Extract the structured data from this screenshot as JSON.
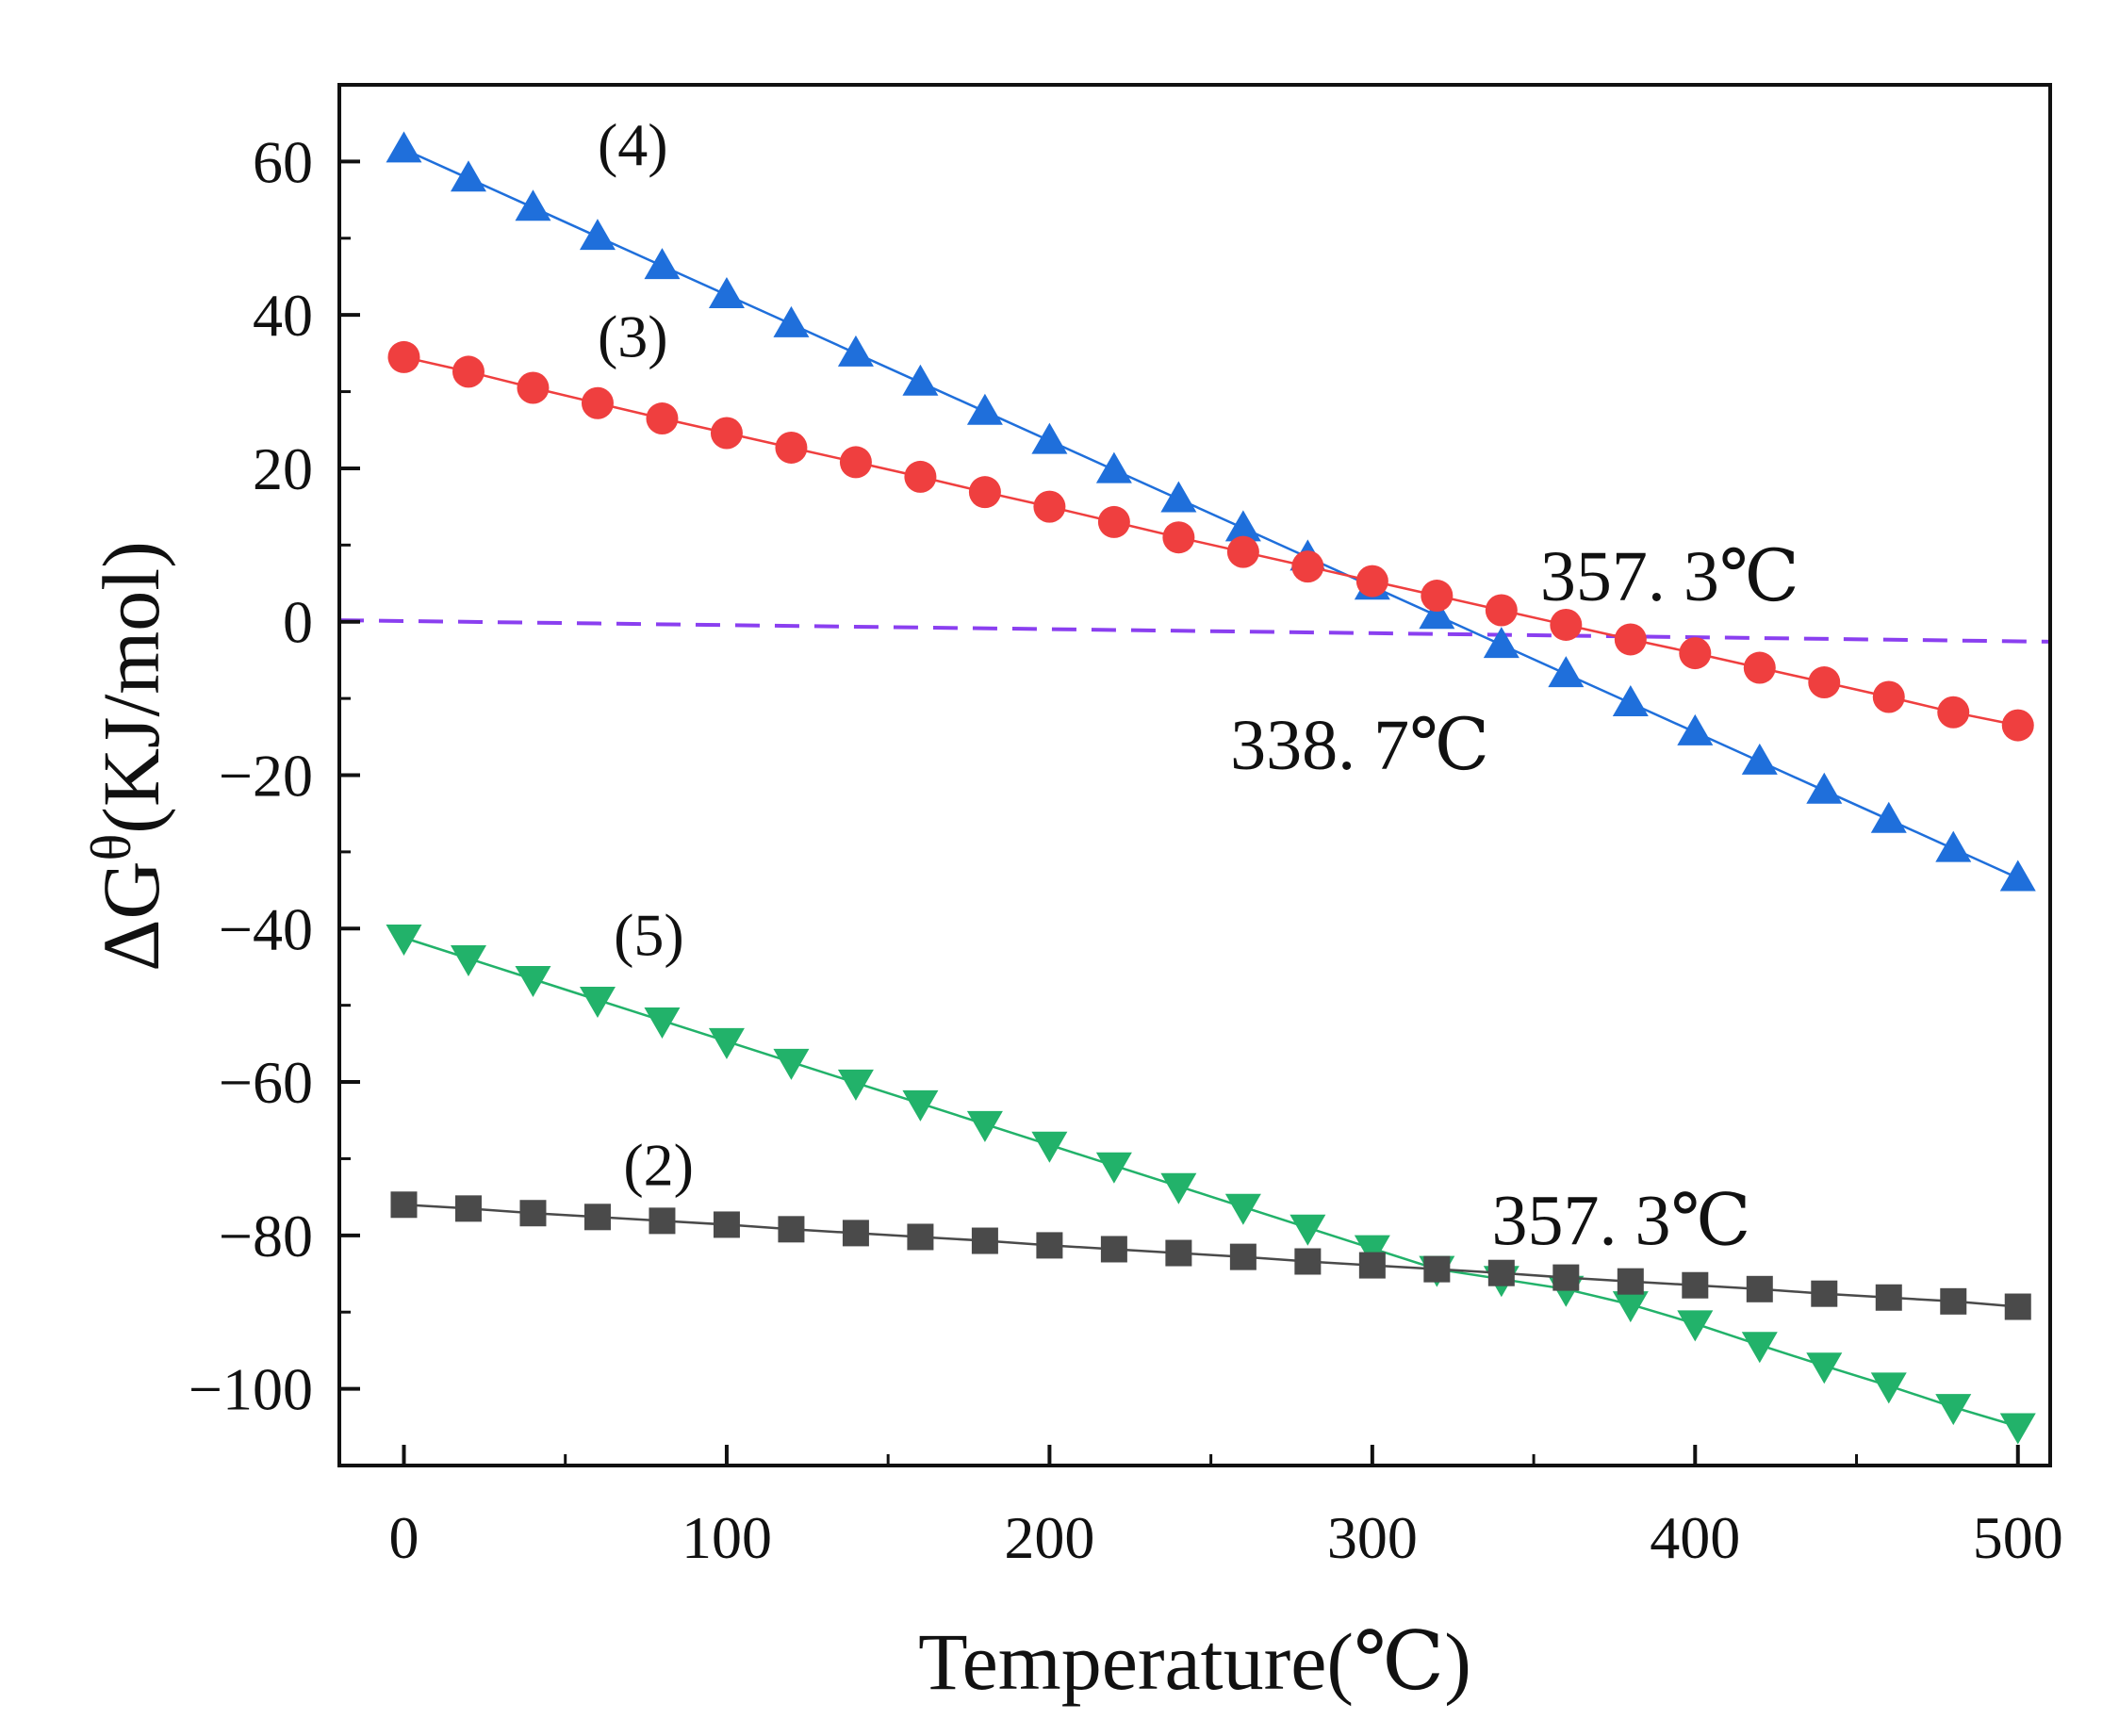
{
  "chart_data": {
    "type": "line",
    "xlabel": "Temperature(℃)",
    "ylabel_main": "ΔG",
    "ylabel_sup": "θ",
    "ylabel_unit": "(KJ/mol)",
    "xlim": [
      -20,
      510
    ],
    "ylim": [
      -110,
      70
    ],
    "xticks": [
      0,
      100,
      200,
      300,
      400,
      500
    ],
    "xtick_labels": [
      "0",
      "100",
      "200",
      "300",
      "400",
      "500"
    ],
    "yticks": [
      60,
      40,
      20,
      0,
      -20,
      -40,
      -60,
      -80,
      -100
    ],
    "ytick_labels": [
      "60",
      "40",
      "20",
      "0",
      "−20",
      "−40",
      "−60",
      "−80",
      "−100"
    ],
    "x": [
      0,
      20,
      40,
      60,
      80,
      100,
      120,
      140,
      160,
      180,
      200,
      220,
      240,
      260,
      280,
      300,
      320,
      340,
      360,
      380,
      400,
      420,
      440,
      460,
      480,
      500
    ],
    "series": [
      {
        "label": "(4)",
        "marker": "triangle-up",
        "color": "#1f6fdb",
        "label_pos": [
          60,
          62
        ],
        "values": [
          61.6,
          57.8,
          54.0,
          50.2,
          46.4,
          42.6,
          38.8,
          35.0,
          31.2,
          27.4,
          23.6,
          19.8,
          16.0,
          12.2,
          8.4,
          4.6,
          0.8,
          -3.0,
          -6.8,
          -10.6,
          -14.4,
          -18.2,
          -22.0,
          -25.8,
          -29.6,
          -33.4
        ]
      },
      {
        "label": "(3)",
        "marker": "circle",
        "color": "#ef3f3f",
        "label_pos": [
          60,
          37
        ],
        "values": [
          34.5,
          32.6,
          30.5,
          28.5,
          26.5,
          24.6,
          22.7,
          20.8,
          18.9,
          16.9,
          15.0,
          13.0,
          11.0,
          9.1,
          7.2,
          5.3,
          3.4,
          1.5,
          -0.4,
          -2.3,
          -4.1,
          -6.0,
          -7.9,
          -9.8,
          -11.8,
          -13.5
        ]
      },
      {
        "label": "(5)",
        "marker": "triangle-down",
        "color": "#22b26a",
        "label_pos": [
          65,
          -41
        ],
        "values": [
          -41.2,
          -43.9,
          -46.6,
          -49.3,
          -52.0,
          -54.7,
          -57.4,
          -60.1,
          -62.8,
          -65.5,
          -68.2,
          -70.9,
          -73.6,
          -76.3,
          -79.0,
          -81.7,
          -84.4,
          -85.7,
          -87.0,
          -89.0,
          -91.5,
          -94.3,
          -97.0,
          -99.6,
          -102.4,
          -104.9
        ]
      },
      {
        "label": "(2)",
        "marker": "square",
        "color": "#4a4a4a",
        "label_pos": [
          68,
          -71
        ],
        "values": [
          -76.0,
          -76.5,
          -77.1,
          -77.6,
          -78.1,
          -78.6,
          -79.2,
          -79.7,
          -80.2,
          -80.7,
          -81.3,
          -81.8,
          -82.3,
          -82.8,
          -83.4,
          -83.9,
          -84.4,
          -84.9,
          -85.5,
          -86.0,
          -86.5,
          -87.0,
          -87.6,
          -88.1,
          -88.6,
          -89.3
        ]
      }
    ],
    "reference_line": {
      "color": "#8a3ff0",
      "dashed": true,
      "from": [
        -20,
        0.2
      ],
      "to": [
        510,
        -2.6
      ]
    },
    "annotations": [
      {
        "text": "357. 3℃",
        "pos": [
          352,
          6
        ]
      },
      {
        "text": "338. 7℃",
        "pos": [
          256,
          -16
        ]
      },
      {
        "text": "357. 3℃",
        "pos": [
          337,
          -78
        ]
      }
    ]
  }
}
